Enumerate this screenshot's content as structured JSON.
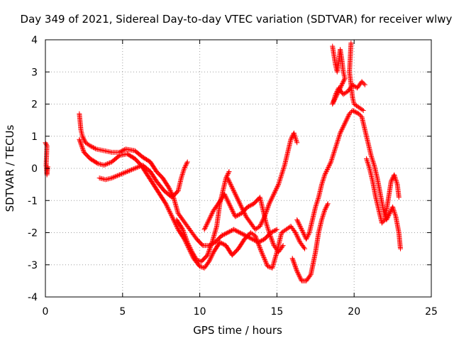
{
  "chart_data": {
    "type": "scatter",
    "title": "Day 349 of 2021, Sidereal Day-to-day VTEC variation (SDTVAR) for receiver wlwy",
    "xlabel": "GPS time / hours",
    "ylabel": "SDTVAR / TECUs",
    "xlim": [
      0,
      25
    ],
    "ylim": [
      -4,
      4
    ],
    "xticks": [
      "0",
      "5",
      "10",
      "15",
      "20",
      "25"
    ],
    "yticks": [
      "-4",
      "-3",
      "-2",
      "-1",
      "0",
      "1",
      "2",
      "3",
      "4"
    ],
    "grid": true,
    "marker": "plus",
    "color": "#ff0000",
    "series": [
      {
        "points": [
          [
            0.0,
            0.8
          ],
          [
            0.1,
            0.7
          ],
          [
            0.05,
            0.1
          ],
          [
            0.1,
            -0.2
          ],
          [
            0.15,
            0.05
          ],
          [
            2.2,
            1.7
          ],
          [
            2.3,
            1.2
          ],
          [
            2.4,
            1.0
          ],
          [
            2.6,
            0.8
          ],
          [
            2.9,
            0.7
          ],
          [
            3.3,
            0.6
          ],
          [
            3.8,
            0.55
          ],
          [
            4.3,
            0.5
          ],
          [
            4.8,
            0.5
          ],
          [
            5.2,
            0.6
          ],
          [
            5.8,
            0.55
          ],
          [
            6.3,
            0.35
          ],
          [
            6.8,
            0.2
          ],
          [
            7.2,
            -0.1
          ],
          [
            7.6,
            -0.3
          ],
          [
            8.0,
            -0.6
          ],
          [
            8.3,
            -0.9
          ],
          [
            8.6,
            -1.4
          ],
          [
            8.9,
            -1.6
          ],
          [
            9.2,
            -1.8
          ],
          [
            9.5,
            -2.0
          ],
          [
            9.8,
            -2.2
          ],
          [
            10.2,
            -2.4
          ],
          [
            10.6,
            -2.4
          ],
          [
            11.0,
            -2.3
          ],
          [
            11.4,
            -2.1
          ],
          [
            11.8,
            -2.0
          ],
          [
            12.2,
            -1.9
          ],
          [
            12.6,
            -2.0
          ],
          [
            13.0,
            -2.1
          ],
          [
            13.4,
            -2.2
          ],
          [
            13.8,
            -2.3
          ],
          [
            14.2,
            -2.2
          ],
          [
            14.6,
            -2.0
          ],
          [
            15.0,
            -1.9
          ]
        ]
      },
      {
        "points": [
          [
            2.2,
            0.9
          ],
          [
            2.5,
            0.5
          ],
          [
            2.9,
            0.3
          ],
          [
            3.4,
            0.15
          ],
          [
            3.8,
            0.1
          ],
          [
            4.3,
            0.2
          ],
          [
            4.8,
            0.4
          ],
          [
            5.3,
            0.45
          ],
          [
            5.8,
            0.3
          ],
          [
            6.2,
            0.1
          ],
          [
            6.6,
            -0.2
          ],
          [
            7.0,
            -0.5
          ],
          [
            7.4,
            -0.8
          ],
          [
            7.8,
            -1.1
          ],
          [
            8.2,
            -1.5
          ],
          [
            8.6,
            -1.9
          ],
          [
            9.0,
            -2.2
          ],
          [
            9.3,
            -2.5
          ],
          [
            9.6,
            -2.8
          ],
          [
            10.0,
            -3.05
          ],
          [
            10.3,
            -3.1
          ],
          [
            10.6,
            -2.9
          ],
          [
            10.9,
            -2.6
          ],
          [
            11.3,
            -2.3
          ],
          [
            11.7,
            -2.4
          ],
          [
            12.1,
            -2.7
          ],
          [
            12.5,
            -2.5
          ],
          [
            12.9,
            -2.2
          ],
          [
            13.3,
            -2.0
          ],
          [
            13.6,
            -2.1
          ],
          [
            14.0,
            -2.6
          ],
          [
            14.4,
            -3.05
          ],
          [
            14.7,
            -3.1
          ],
          [
            15.0,
            -2.6
          ],
          [
            15.3,
            -2.0
          ],
          [
            15.6,
            -1.9
          ],
          [
            15.9,
            -1.8
          ],
          [
            16.2,
            -2.0
          ],
          [
            16.5,
            -2.3
          ],
          [
            16.8,
            -2.5
          ]
        ]
      },
      {
        "points": [
          [
            3.5,
            -0.3
          ],
          [
            3.9,
            -0.35
          ],
          [
            4.3,
            -0.3
          ],
          [
            4.8,
            -0.2
          ],
          [
            5.3,
            -0.1
          ],
          [
            5.8,
            0.0
          ],
          [
            6.3,
            0.1
          ],
          [
            6.8,
            -0.1
          ],
          [
            7.2,
            -0.4
          ],
          [
            7.7,
            -0.7
          ],
          [
            8.2,
            -0.9
          ],
          [
            8.6,
            -0.7
          ],
          [
            8.8,
            -0.3
          ],
          [
            9.0,
            0.0
          ],
          [
            9.2,
            0.2
          ]
        ]
      },
      {
        "points": [
          [
            8.5,
            -1.6
          ],
          [
            8.9,
            -1.9
          ],
          [
            9.2,
            -2.3
          ],
          [
            9.5,
            -2.6
          ],
          [
            9.8,
            -2.85
          ],
          [
            10.1,
            -2.9
          ],
          [
            10.5,
            -2.7
          ],
          [
            10.8,
            -2.3
          ],
          [
            11.1,
            -1.8
          ],
          [
            11.3,
            -1.1
          ],
          [
            11.5,
            -0.7
          ],
          [
            11.7,
            -0.3
          ],
          [
            11.9,
            -0.1
          ]
        ]
      },
      {
        "points": [
          [
            10.3,
            -1.9
          ],
          [
            10.6,
            -1.6
          ],
          [
            10.9,
            -1.3
          ],
          [
            11.2,
            -1.1
          ],
          [
            11.6,
            -0.8
          ],
          [
            12.0,
            -1.2
          ],
          [
            12.3,
            -1.5
          ],
          [
            12.7,
            -1.4
          ],
          [
            13.1,
            -1.2
          ],
          [
            13.5,
            -1.1
          ],
          [
            13.9,
            -0.9
          ],
          [
            14.1,
            -1.3
          ],
          [
            14.3,
            -1.7
          ],
          [
            14.5,
            -2.0
          ],
          [
            14.8,
            -2.4
          ],
          [
            15.1,
            -2.6
          ],
          [
            15.4,
            -2.4
          ]
        ]
      },
      {
        "points": [
          [
            11.8,
            -0.3
          ],
          [
            12.1,
            -0.6
          ],
          [
            12.4,
            -0.9
          ],
          [
            12.7,
            -1.2
          ],
          [
            13.0,
            -1.5
          ],
          [
            13.3,
            -1.7
          ],
          [
            13.6,
            -1.9
          ],
          [
            13.9,
            -1.8
          ],
          [
            14.2,
            -1.5
          ],
          [
            14.5,
            -1.1
          ],
          [
            14.8,
            -0.8
          ],
          [
            15.1,
            -0.5
          ],
          [
            15.3,
            -0.2
          ],
          [
            15.5,
            0.1
          ],
          [
            15.7,
            0.5
          ],
          [
            15.9,
            0.9
          ],
          [
            16.1,
            1.1
          ],
          [
            16.3,
            0.8
          ]
        ]
      },
      {
        "points": [
          [
            16.0,
            -2.8
          ],
          [
            16.3,
            -3.2
          ],
          [
            16.6,
            -3.5
          ],
          [
            16.9,
            -3.5
          ],
          [
            17.2,
            -3.3
          ],
          [
            17.5,
            -2.6
          ],
          [
            17.7,
            -2.0
          ],
          [
            17.9,
            -1.6
          ],
          [
            18.1,
            -1.3
          ],
          [
            18.3,
            -1.1
          ]
        ]
      },
      {
        "points": [
          [
            16.3,
            -1.6
          ],
          [
            16.6,
            -1.9
          ],
          [
            16.9,
            -2.2
          ],
          [
            17.1,
            -2.0
          ],
          [
            17.3,
            -1.6
          ],
          [
            17.5,
            -1.2
          ],
          [
            17.7,
            -0.9
          ],
          [
            17.9,
            -0.5
          ],
          [
            18.1,
            -0.2
          ],
          [
            18.3,
            0.0
          ],
          [
            18.5,
            0.2
          ],
          [
            18.7,
            0.5
          ],
          [
            18.9,
            0.8
          ],
          [
            19.1,
            1.1
          ],
          [
            19.3,
            1.3
          ],
          [
            19.5,
            1.5
          ],
          [
            19.7,
            1.7
          ],
          [
            19.9,
            1.8
          ],
          [
            20.1,
            1.75
          ],
          [
            20.3,
            1.7
          ],
          [
            20.5,
            1.6
          ],
          [
            20.7,
            1.2
          ],
          [
            20.9,
            0.8
          ],
          [
            21.1,
            0.4
          ],
          [
            21.3,
            0.1
          ],
          [
            21.5,
            -0.3
          ],
          [
            21.7,
            -0.8
          ],
          [
            21.9,
            -1.3
          ],
          [
            22.1,
            -1.6
          ],
          [
            22.3,
            -1.4
          ],
          [
            22.5,
            -1.2
          ],
          [
            22.7,
            -1.5
          ],
          [
            22.9,
            -2.0
          ],
          [
            23.0,
            -2.5
          ]
        ]
      },
      {
        "points": [
          [
            18.6,
            3.8
          ],
          [
            18.7,
            3.5
          ],
          [
            18.8,
            3.2
          ],
          [
            18.9,
            3.0
          ],
          [
            19.0,
            3.3
          ],
          [
            19.1,
            3.7
          ],
          [
            19.2,
            3.4
          ],
          [
            19.3,
            3.0
          ],
          [
            19.4,
            2.8
          ],
          [
            18.6,
            2.0
          ],
          [
            18.8,
            2.3
          ],
          [
            19.0,
            2.5
          ],
          [
            19.3,
            2.3
          ],
          [
            19.6,
            2.4
          ],
          [
            19.9,
            2.6
          ],
          [
            20.2,
            2.5
          ],
          [
            20.5,
            2.7
          ],
          [
            20.7,
            2.6
          ],
          [
            19.8,
            3.9
          ],
          [
            19.7,
            3.0
          ],
          [
            19.9,
            2.2
          ],
          [
            20.0,
            2.0
          ],
          [
            20.3,
            1.9
          ],
          [
            20.6,
            1.8
          ]
        ]
      },
      {
        "points": [
          [
            20.8,
            0.3
          ],
          [
            21.0,
            0.0
          ],
          [
            21.2,
            -0.4
          ],
          [
            21.4,
            -0.9
          ],
          [
            21.6,
            -1.3
          ],
          [
            21.8,
            -1.7
          ],
          [
            22.0,
            -1.6
          ],
          [
            22.2,
            -1.0
          ],
          [
            22.4,
            -0.4
          ],
          [
            22.6,
            -0.2
          ],
          [
            22.8,
            -0.5
          ],
          [
            22.9,
            -0.9
          ]
        ]
      }
    ]
  }
}
